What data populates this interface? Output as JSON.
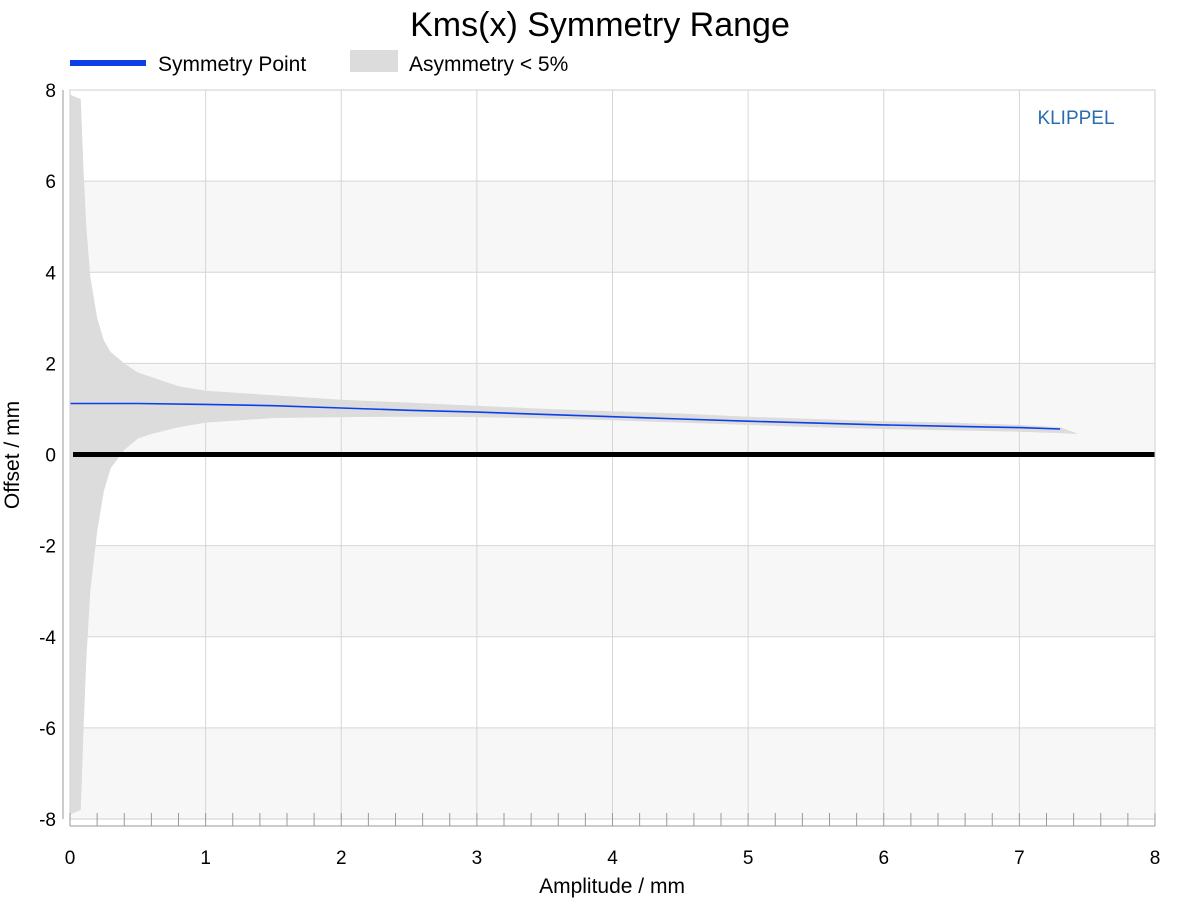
{
  "chart_data": {
    "type": "area",
    "title": "Kms(x) Symmetry Range",
    "xlabel": "Amplitude / mm",
    "ylabel": "Offset / mm",
    "xlim": [
      0,
      8
    ],
    "ylim": [
      -8,
      8
    ],
    "xticks": [
      "0",
      "1",
      "2",
      "3",
      "4",
      "5",
      "6",
      "7",
      "8"
    ],
    "yticks": [
      "8",
      "6",
      "4",
      "2",
      "0",
      "-2",
      "-4",
      "-6",
      "-8"
    ],
    "grid": true,
    "legend_position": "top-left",
    "watermark": "KLIPPEL",
    "colors": {
      "symmetry_point": "#0b3fe8",
      "asymmetry_band": "#dcdcdc",
      "zero_line": "#000000",
      "stripe": "#f7f7f7",
      "grid": "#d6d6d6",
      "brand": "#2a6cb0"
    },
    "series": [
      {
        "name": "Asymmetry < 5%",
        "type": "band",
        "x": [
          0.0,
          0.08,
          0.1,
          0.12,
          0.15,
          0.2,
          0.25,
          0.3,
          0.4,
          0.5,
          0.6,
          0.8,
          1.0,
          1.5,
          2.0,
          2.5,
          3.0,
          3.5,
          4.0,
          4.5,
          5.0,
          5.5,
          6.0,
          6.5,
          7.0,
          7.3,
          7.42
        ],
        "upper": [
          7.9,
          7.8,
          6.2,
          5.0,
          3.9,
          3.0,
          2.5,
          2.25,
          2.0,
          1.8,
          1.7,
          1.5,
          1.4,
          1.3,
          1.2,
          1.14,
          1.07,
          1.0,
          0.95,
          0.9,
          0.83,
          0.78,
          0.73,
          0.7,
          0.65,
          0.6,
          0.47
        ],
        "lower": [
          -7.9,
          -7.8,
          -6.0,
          -4.5,
          -3.0,
          -1.7,
          -0.8,
          -0.3,
          0.1,
          0.35,
          0.45,
          0.6,
          0.7,
          0.8,
          0.82,
          0.83,
          0.82,
          0.79,
          0.75,
          0.7,
          0.65,
          0.6,
          0.56,
          0.53,
          0.5,
          0.47,
          0.45
        ]
      },
      {
        "name": "Symmetry Point",
        "type": "line",
        "x": [
          0.0,
          0.5,
          1.0,
          1.5,
          2.0,
          2.5,
          3.0,
          3.5,
          4.0,
          4.5,
          5.0,
          5.5,
          6.0,
          6.5,
          7.0,
          7.3
        ],
        "y": [
          1.12,
          1.12,
          1.1,
          1.07,
          1.02,
          0.97,
          0.93,
          0.88,
          0.83,
          0.78,
          0.73,
          0.69,
          0.65,
          0.62,
          0.59,
          0.56
        ]
      }
    ],
    "reference_line": {
      "y": 0
    }
  }
}
